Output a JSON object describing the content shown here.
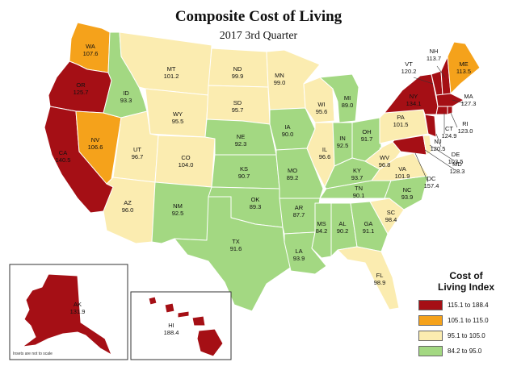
{
  "map": {
    "title": "Composite Cost of Living",
    "subtitle": "2017 3rd Quarter",
    "scale_note": "Insets are not to scale",
    "colors": {
      "tier1": "#a50f15",
      "tier2": "#f5a21b",
      "tier3": "#fbecb0",
      "tier4": "#a3d882"
    },
    "legend": {
      "title_line1": "Cost of",
      "title_line2": "Living Index",
      "items": [
        {
          "label": "115.1 to 188.4",
          "color": "#a50f15"
        },
        {
          "label": "105.1 to 115.0",
          "color": "#f5a21b"
        },
        {
          "label": "95.1 to 105.0",
          "color": "#fbecb0"
        },
        {
          "label": "84.2 to 95.0",
          "color": "#a3d882"
        }
      ]
    },
    "states": {
      "WA": {
        "abbr": "WA",
        "value": "107.6"
      },
      "OR": {
        "abbr": "OR",
        "value": "125.7"
      },
      "CA": {
        "abbr": "CA",
        "value": "140.5"
      },
      "NV": {
        "abbr": "NV",
        "value": "106.6"
      },
      "ID": {
        "abbr": "ID",
        "value": "93.3"
      },
      "MT": {
        "abbr": "MT",
        "value": "101.2"
      },
      "WY": {
        "abbr": "WY",
        "value": "95.5"
      },
      "UT": {
        "abbr": "UT",
        "value": "96.7"
      },
      "AZ": {
        "abbr": "AZ",
        "value": "96.0"
      },
      "CO": {
        "abbr": "CO",
        "value": "104.0"
      },
      "NM": {
        "abbr": "NM",
        "value": "92.5"
      },
      "ND": {
        "abbr": "ND",
        "value": "99.9"
      },
      "SD": {
        "abbr": "SD",
        "value": "95.7"
      },
      "NE": {
        "abbr": "NE",
        "value": "92.3"
      },
      "KS": {
        "abbr": "KS",
        "value": "90.7"
      },
      "OK": {
        "abbr": "OK",
        "value": "89.3"
      },
      "TX": {
        "abbr": "TX",
        "value": "91.6"
      },
      "MN": {
        "abbr": "MN",
        "value": "99.0"
      },
      "IA": {
        "abbr": "IA",
        "value": "90.0"
      },
      "MO": {
        "abbr": "MO",
        "value": "89.2"
      },
      "AR": {
        "abbr": "AR",
        "value": "87.7"
      },
      "LA": {
        "abbr": "LA",
        "value": "93.9"
      },
      "WI": {
        "abbr": "WI",
        "value": "95.6"
      },
      "IL": {
        "abbr": "IL",
        "value": "96.6"
      },
      "MI": {
        "abbr": "MI",
        "value": "89.0"
      },
      "IN": {
        "abbr": "IN",
        "value": "92.5"
      },
      "OH": {
        "abbr": "OH",
        "value": "91.7"
      },
      "KY": {
        "abbr": "KY",
        "value": "93.7"
      },
      "TN": {
        "abbr": "TN",
        "value": "90.1"
      },
      "MS": {
        "abbr": "MS",
        "value": "84.2"
      },
      "AL": {
        "abbr": "AL",
        "value": "90.2"
      },
      "GA": {
        "abbr": "GA",
        "value": "91.1"
      },
      "FL": {
        "abbr": "FL",
        "value": "98.9"
      },
      "SC": {
        "abbr": "SC",
        "value": "98.4"
      },
      "NC": {
        "abbr": "NC",
        "value": "93.9"
      },
      "VA": {
        "abbr": "VA",
        "value": "101.9"
      },
      "WV": {
        "abbr": "WV",
        "value": "96.8"
      },
      "PA": {
        "abbr": "PA",
        "value": "101.5"
      },
      "NY": {
        "abbr": "NY",
        "value": "134.1"
      },
      "VT": {
        "abbr": "VT",
        "value": "120.2"
      },
      "NH": {
        "abbr": "NH",
        "value": "113.7"
      },
      "ME": {
        "abbr": "ME",
        "value": "113.5"
      },
      "MA": {
        "abbr": "MA",
        "value": "127.3"
      },
      "RI": {
        "abbr": "RI",
        "value": "123.0"
      },
      "CT": {
        "abbr": "CT",
        "value": "124.9"
      },
      "NJ": {
        "abbr": "NJ",
        "value": "120.5"
      },
      "DE": {
        "abbr": "DE",
        "value": "103.5"
      },
      "MD": {
        "abbr": "MD",
        "value": "128.3"
      },
      "DC": {
        "abbr": "DC",
        "value": "157.4"
      },
      "AK": {
        "abbr": "AK",
        "value": "131.9"
      },
      "HI": {
        "abbr": "HI",
        "value": "188.4"
      }
    }
  }
}
